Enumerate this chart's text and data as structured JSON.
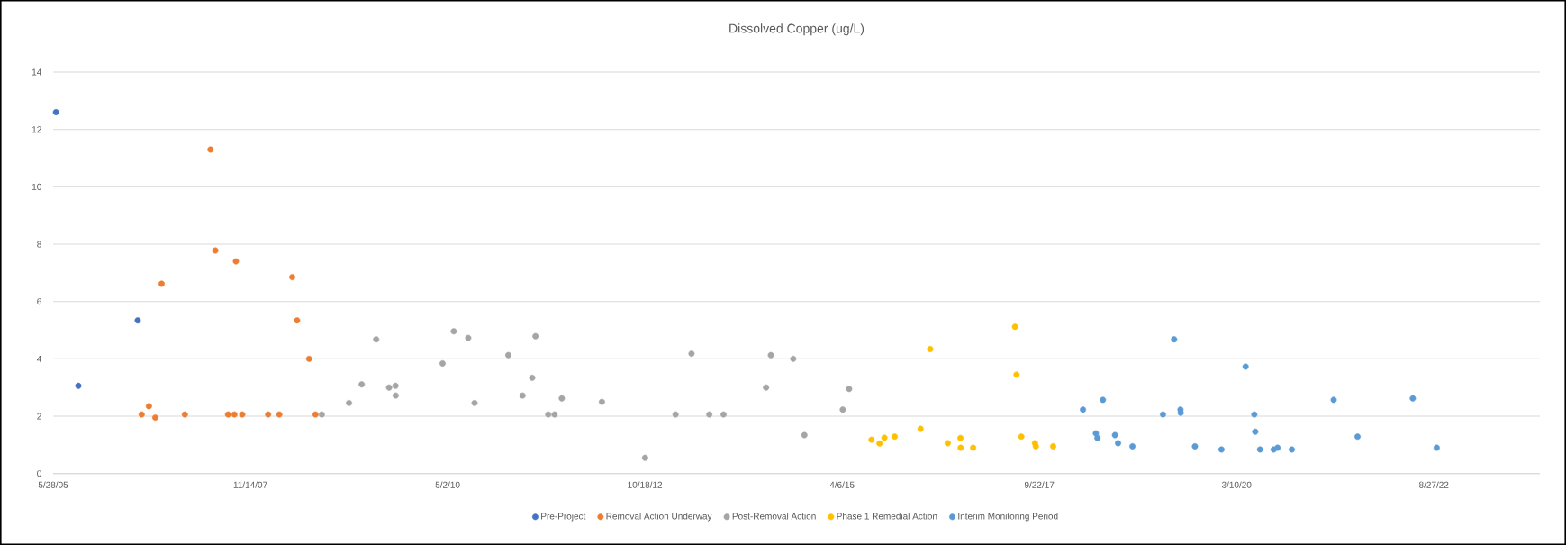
{
  "chart_data": {
    "type": "scatter",
    "title": "Dissolved Copper (ug/L)",
    "xlim": [
      "2005-05-28",
      "2023-12-24"
    ],
    "xticks": [
      {
        "value": "2005-05-28",
        "label": "5/28/05"
      },
      {
        "value": "2007-11-14",
        "label": "11/14/07"
      },
      {
        "value": "2010-05-02",
        "label": "5/2/10"
      },
      {
        "value": "2012-10-18",
        "label": "10/18/12"
      },
      {
        "value": "2015-04-06",
        "label": "4/6/15"
      },
      {
        "value": "2017-09-22",
        "label": "9/22/17"
      },
      {
        "value": "2020-03-10",
        "label": "3/10/20"
      },
      {
        "value": "2022-08-27",
        "label": "8/27/22"
      }
    ],
    "ylim": [
      0,
      14
    ],
    "yticks": [
      0,
      2,
      4,
      6,
      8,
      10,
      12,
      14
    ],
    "grid": "y",
    "legend": "bottom",
    "marker": "circle",
    "series": [
      {
        "name": "Pre-Project",
        "color": "#4472c4",
        "x": [
          "2005-06-10",
          "2005-09-20",
          "2006-06-18"
        ],
        "values": [
          12.6,
          3.06,
          5.34
        ]
      },
      {
        "name": "Removal Action Underway",
        "color": "#ed7d31",
        "x": [
          "2006-07-06",
          "2006-08-08",
          "2006-09-06",
          "2006-10-05",
          "2007-01-19",
          "2007-05-16",
          "2007-06-07",
          "2007-08-04",
          "2007-09-02",
          "2007-09-09",
          "2007-10-08",
          "2008-02-03",
          "2008-03-25",
          "2008-05-23",
          "2008-06-14",
          "2008-08-08",
          "2008-09-06"
        ],
        "values": [
          2.06,
          2.35,
          1.95,
          6.62,
          2.06,
          11.3,
          7.78,
          2.06,
          2.06,
          7.4,
          2.06,
          2.06,
          2.06,
          6.85,
          5.34,
          4.0,
          2.06
        ]
      },
      {
        "name": "Post-Removal Action",
        "color": "#a5a5a5",
        "x": [
          "2008-10-05",
          "2009-02-06",
          "2009-04-05",
          "2009-06-10",
          "2009-08-08",
          "2009-09-06",
          "2009-09-07",
          "2010-04-09",
          "2010-05-30",
          "2010-08-04",
          "2010-09-02",
          "2011-02-03",
          "2011-04-09",
          "2011-05-23",
          "2011-06-07",
          "2011-08-04",
          "2011-09-02",
          "2011-10-05",
          "2012-04-05",
          "2012-10-19",
          "2013-03-07",
          "2013-05-19",
          "2013-08-08",
          "2013-10-12",
          "2014-04-24",
          "2014-05-16",
          "2014-08-26",
          "2014-10-16",
          "2015-04-09",
          "2015-05-08"
        ],
        "values": [
          2.06,
          2.46,
          3.11,
          4.68,
          3.0,
          3.06,
          2.72,
          3.84,
          4.96,
          4.73,
          2.46,
          4.13,
          2.72,
          3.34,
          4.79,
          2.06,
          2.06,
          2.62,
          2.5,
          0.55,
          2.06,
          4.18,
          2.06,
          2.06,
          3.0,
          4.13,
          4.0,
          1.34,
          2.23,
          2.95
        ]
      },
      {
        "name": "Phase 1 Remedial Action",
        "color": "#ffc000",
        "x": [
          "2015-08-18",
          "2015-09-24",
          "2015-10-16",
          "2015-12-02",
          "2016-03-29",
          "2016-05-12",
          "2016-07-31",
          "2016-09-27",
          "2016-09-28",
          "2016-11-24",
          "2017-06-03",
          "2017-06-10",
          "2017-07-02",
          "2017-09-02",
          "2017-09-06",
          "2017-11-24"
        ],
        "values": [
          1.18,
          1.05,
          1.25,
          1.29,
          1.56,
          4.34,
          1.06,
          1.24,
          0.9,
          0.9,
          5.12,
          3.45,
          1.29,
          1.06,
          0.95,
          0.95
        ]
      },
      {
        "name": "Interim Monitoring Period",
        "color": "#5b9bd5",
        "x": [
          "2018-04-09",
          "2018-06-07",
          "2018-06-14",
          "2018-07-09",
          "2018-09-02",
          "2018-09-16",
          "2018-11-21",
          "2019-04-09",
          "2019-05-30",
          "2019-06-28",
          "2019-06-29",
          "2019-09-02",
          "2020-01-01",
          "2020-04-20",
          "2020-05-30",
          "2020-06-03",
          "2020-06-25",
          "2020-08-26",
          "2020-09-13",
          "2020-11-17",
          "2021-05-27",
          "2021-09-13",
          "2022-05-23",
          "2022-09-09"
        ],
        "values": [
          2.23,
          1.4,
          1.24,
          2.57,
          1.34,
          1.06,
          0.95,
          2.06,
          4.68,
          2.23,
          2.12,
          0.95,
          0.84,
          3.73,
          2.06,
          1.46,
          0.84,
          0.84,
          0.9,
          0.84,
          2.57,
          1.29,
          2.62,
          0.9
        ]
      }
    ]
  }
}
